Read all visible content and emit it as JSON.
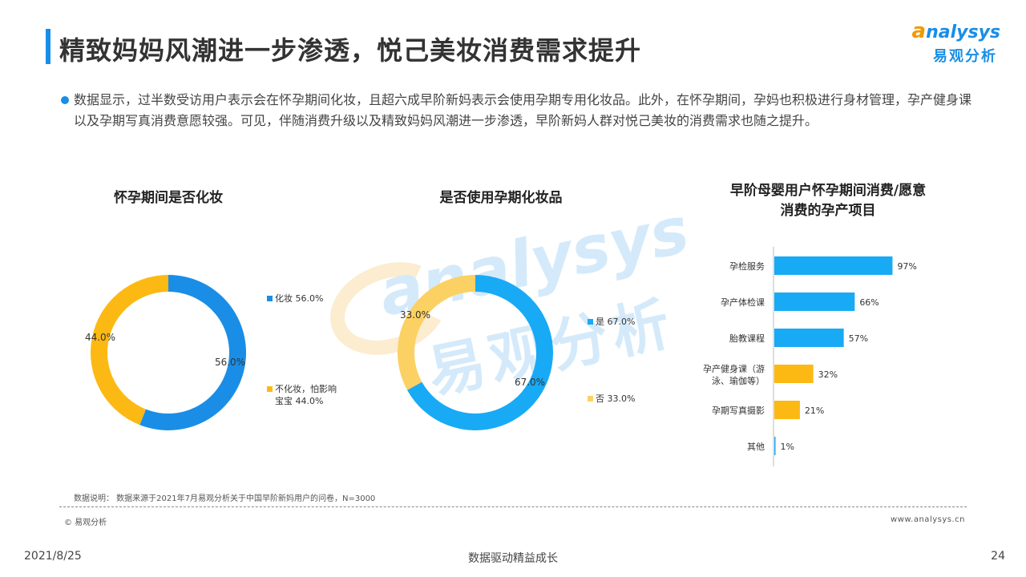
{
  "page": {
    "title": "精致妈妈风潮进一步渗透，悦己美妆消费需求提升",
    "logo_en_a": "a",
    "logo_en_rest": "nalysys",
    "logo_cn": "易观分析",
    "description": "数据显示，过半数受访用户表示会在怀孕期间化妆，且超六成早阶新妈表示会使用孕期专用化妆品。此外，在怀孕期间，孕妈也积极进行身材管理，孕产健身课以及孕期写真消费意愿较强。可见，伴随消费升级以及精致妈妈风潮进一步渗透，早阶新妈人群对悦己美妆的消费需求也随之提升。",
    "watermark_en": "analysys",
    "watermark_cn": "易观分析",
    "note": "数据说明：  数据来源于2021年7月易观分析关于中国早阶新妈用户的问卷，N=3000",
    "copyright": "© 易观分析",
    "website": "www.analysys.cn",
    "footer_date": "2021/8/25",
    "footer_center": "数据驱动精益成长",
    "footer_page": "24"
  },
  "colors": {
    "blue": "#1a8ee6",
    "light_blue": "#18aaf5",
    "yellow": "#fdb913",
    "light_yellow": "#fbd163",
    "orange": "#f39800"
  },
  "chart_data": [
    {
      "type": "pie",
      "title": "怀孕期间是否化妆",
      "categories": [
        "化妆",
        "不化妆，怕影响宝宝"
      ],
      "values": [
        56.0,
        44.0
      ],
      "value_labels": [
        "56.0%",
        "44.0%"
      ],
      "legend_labels": [
        "化妆 56.0%",
        "不化妆，怕影响",
        "宝宝 44.0%"
      ],
      "colors": [
        "#1a8ee6",
        "#fdb913"
      ]
    },
    {
      "type": "pie",
      "title": "是否使用孕期化妆品",
      "categories": [
        "是",
        "否"
      ],
      "values": [
        67.0,
        33.0
      ],
      "value_labels": [
        "67.0%",
        "33.0%"
      ],
      "legend_labels": [
        "是 67.0%",
        "否 33.0%"
      ],
      "colors": [
        "#18aaf5",
        "#fbd163"
      ]
    },
    {
      "type": "bar",
      "orientation": "horizontal",
      "title": "早阶母婴用户怀孕期间消费/愿意消费的孕产项目",
      "title_lines": [
        "早阶母婴用户怀孕期间消费/愿意",
        "消费的孕产项目"
      ],
      "categories": [
        "孕检服务",
        "孕产体检课",
        "胎教课程",
        "孕产健身课（游泳、瑜伽等）",
        "孕期写真摄影",
        "其他"
      ],
      "category_lines": [
        [
          "孕检服务"
        ],
        [
          "孕产体检课"
        ],
        [
          "胎教课程"
        ],
        [
          "孕产健身课（游",
          "泳、瑜伽等）"
        ],
        [
          "孕期写真摄影"
        ],
        [
          "其他"
        ]
      ],
      "values": [
        97,
        66,
        57,
        32,
        21,
        1
      ],
      "value_labels": [
        "97%",
        "66%",
        "57%",
        "32%",
        "21%",
        "1%"
      ],
      "bar_colors": [
        "#18aaf5",
        "#18aaf5",
        "#18aaf5",
        "#fdb913",
        "#fdb913",
        "#18aaf5"
      ],
      "xlim": [
        0,
        100
      ]
    }
  ]
}
